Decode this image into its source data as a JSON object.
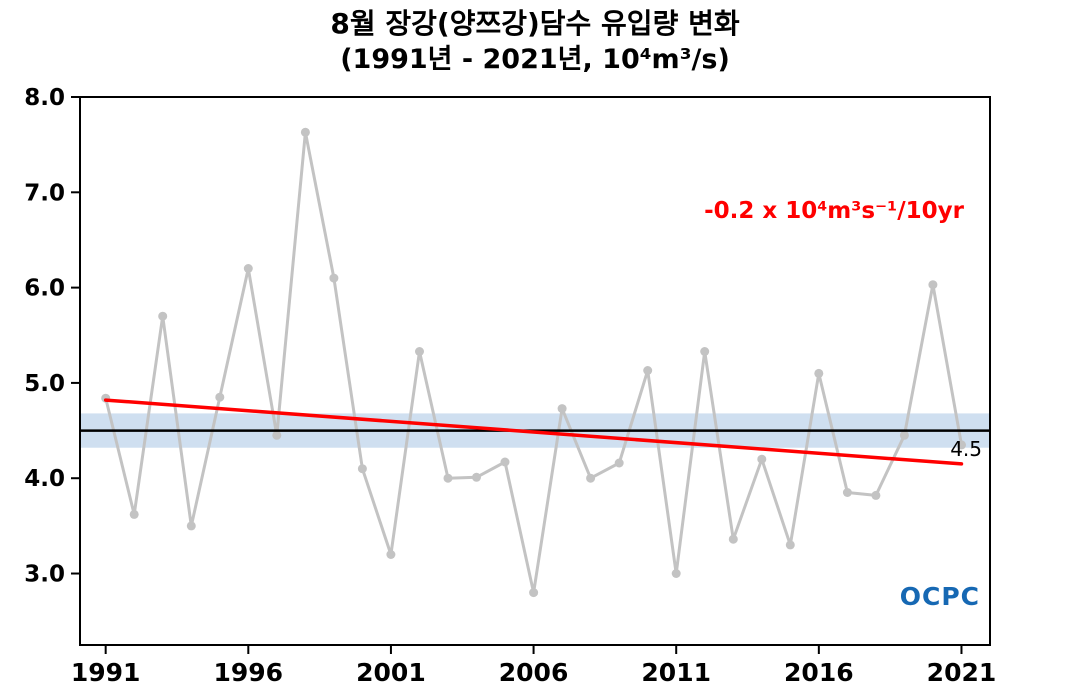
{
  "title": {
    "line1": "8월 장강(양쯔강)담수 유입량 변화",
    "line2": "(1991년 - 2021년, 10⁴m³/s)"
  },
  "logo": {
    "text": "OCPC"
  },
  "chart_data": {
    "type": "line",
    "title": "8월 장강(양쯔강)담수 유입량 변화 (1991년 - 2021년, 10⁴m³/s)",
    "x": [
      1991,
      1992,
      1993,
      1994,
      1995,
      1996,
      1997,
      1998,
      1999,
      2000,
      2001,
      2002,
      2003,
      2004,
      2005,
      2006,
      2007,
      2008,
      2009,
      2010,
      2011,
      2012,
      2013,
      2014,
      2015,
      2016,
      2017,
      2018,
      2019,
      2020,
      2021
    ],
    "values": [
      4.84,
      3.62,
      5.7,
      3.5,
      4.85,
      6.2,
      4.45,
      7.63,
      6.1,
      4.1,
      3.2,
      5.33,
      4.0,
      4.01,
      4.17,
      2.8,
      4.73,
      4.0,
      4.16,
      5.13,
      3.0,
      5.33,
      3.36,
      4.2,
      3.3,
      5.1,
      3.85,
      3.82,
      4.45,
      6.03,
      4.35
    ],
    "xticks": [
      "1991",
      "1996",
      "2001",
      "2006",
      "2011",
      "2016",
      "2021"
    ],
    "yticks": [
      "3.0",
      "4.0",
      "5.0",
      "6.0",
      "7.0",
      "8.0"
    ],
    "xlim": [
      1990.1,
      2022
    ],
    "ylim": [
      2.25,
      8.0
    ],
    "grid": false,
    "mean": 4.5,
    "mean_label": "4.5",
    "mean_band": [
      4.32,
      4.68
    ],
    "trend": {
      "x": [
        1991,
        2021
      ],
      "y": [
        4.82,
        4.15
      ],
      "rate_per_10yr": -0.2,
      "label": "-0.2 x 10⁴m³s⁻¹/10yr"
    },
    "colors": {
      "series": "#c3c3c3",
      "trend": "#ff0000",
      "mean": "#000000",
      "band": "#cfdff0",
      "axis": "#000000",
      "logo": "#1668b3"
    }
  }
}
